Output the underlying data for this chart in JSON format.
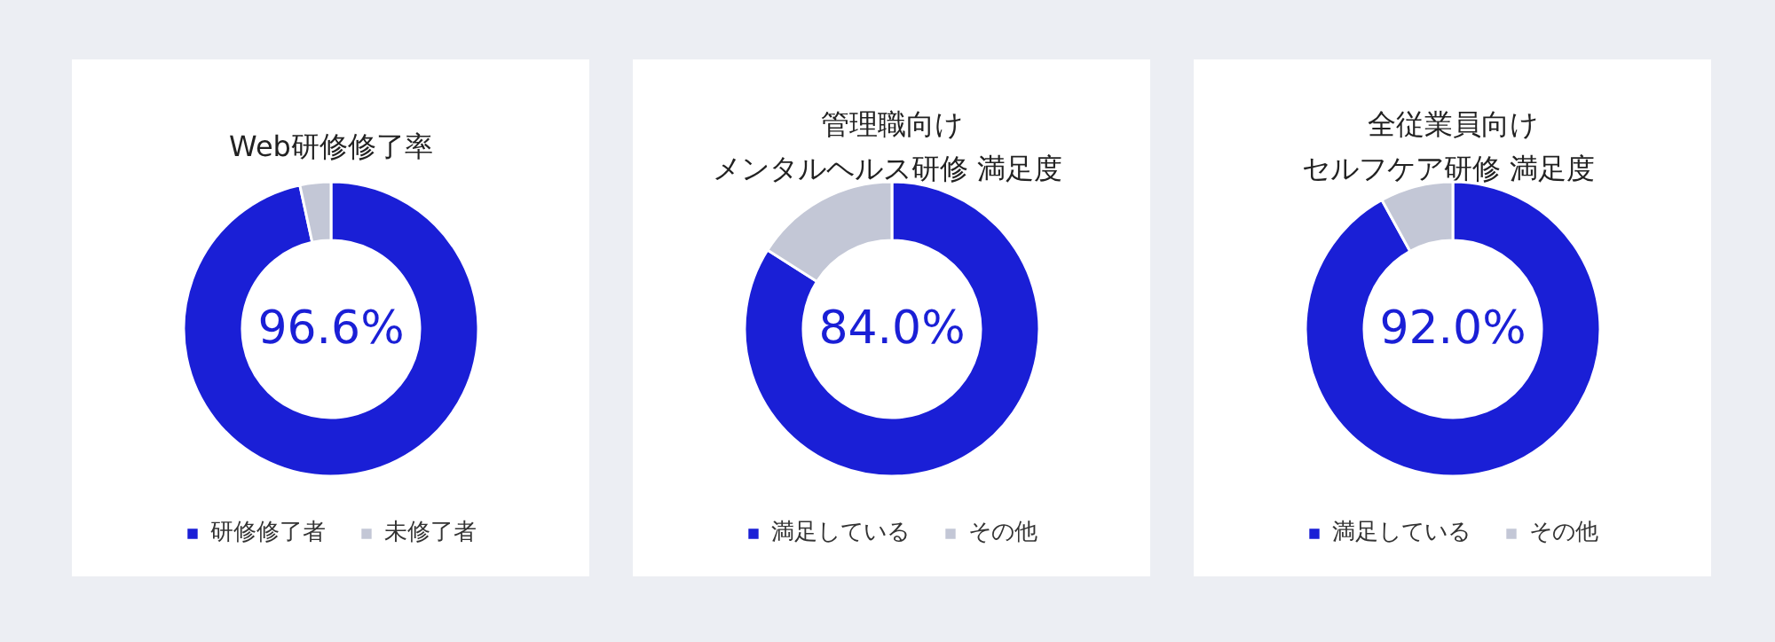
{
  "chart_data": [
    {
      "type": "donut",
      "title": "Web研修修了率",
      "categories": [
        "研修修了者",
        "未修了者"
      ],
      "values": [
        96.6,
        3.4
      ],
      "colors": [
        "#1a1fd6",
        "#c3c7d6"
      ],
      "value_labels": [
        "96.6%",
        null
      ],
      "legend": "bottom"
    },
    {
      "type": "donut",
      "title": "管理職向けメンタルヘルス研修  満足度",
      "categories": [
        "満足している",
        "その他"
      ],
      "values": [
        84.0,
        16.0
      ],
      "colors": [
        "#1a1fd6",
        "#c3c7d6"
      ],
      "value_labels": [
        "84.0%",
        null
      ],
      "legend": "bottom"
    },
    {
      "type": "donut",
      "title": "全従業員向けセルフケア研修  満足度",
      "categories": [
        "満足している",
        "その他"
      ],
      "values": [
        92.0,
        8.0
      ],
      "colors": [
        "#1a1fd6",
        "#c3c7d6"
      ],
      "value_labels": [
        "92.0%",
        null
      ],
      "legend": "bottom"
    }
  ]
}
